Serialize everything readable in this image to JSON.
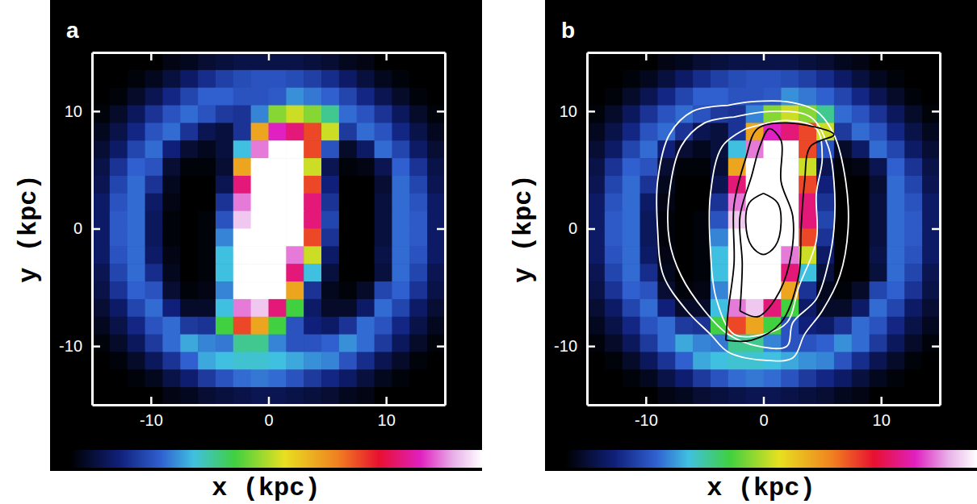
{
  "chart_data": [
    {
      "type": "heatmap",
      "label": "a",
      "x_label": "x (kpc)",
      "y_label": "y (kpc)",
      "xlim": [
        -15,
        15
      ],
      "ylim": [
        -15,
        15
      ],
      "xticks": [
        -10,
        0,
        10
      ],
      "yticks": [
        -10,
        0,
        10
      ],
      "colorbar_range": [
        0,
        10
      ],
      "x": [
        -14.25,
        -12.75,
        -11.25,
        -9.75,
        -8.25,
        -6.75,
        -5.25,
        -3.75,
        -2.25,
        -0.75,
        0.75,
        2.25,
        3.75,
        5.25,
        6.75,
        8.25,
        9.75,
        11.25,
        12.75,
        14.25
      ],
      "y": [
        14.25,
        12.75,
        11.25,
        9.75,
        8.25,
        6.75,
        5.25,
        3.75,
        2.25,
        0.75,
        -0.75,
        -2.25,
        -3.75,
        -5.25,
        -6.75,
        -8.25,
        -9.75,
        -11.25,
        -12.75,
        -14.25
      ],
      "cells": [
        [
          0,
          0,
          0,
          0,
          0.2,
          0.3,
          0.5,
          0.6,
          0.7,
          0.7,
          0.7,
          0.7,
          0.6,
          0.5,
          0.3,
          0.2,
          0,
          0,
          0,
          0
        ],
        [
          0,
          0,
          0.1,
          0.3,
          0.6,
          1.0,
          1.4,
          1.7,
          1.9,
          2,
          2,
          1.9,
          1.7,
          1.4,
          1.0,
          0.6,
          0.3,
          0.1,
          0,
          0
        ],
        [
          0,
          0.1,
          0.4,
          0.8,
          1.3,
          1.8,
          2.2,
          2.2,
          2.0,
          2.0,
          2.1,
          2.6,
          2.4,
          2.2,
          1.8,
          1.3,
          0.8,
          0.4,
          0.1,
          0
        ],
        [
          0.1,
          0.4,
          0.9,
          1.5,
          2.0,
          2.3,
          2.0,
          1.6,
          1.5,
          2.5,
          4.5,
          5,
          4.5,
          3.5,
          2.3,
          2.0,
          1.5,
          0.9,
          0.4,
          0.1
        ],
        [
          0.3,
          0.7,
          1.3,
          2.0,
          2.3,
          1.5,
          0.8,
          0.6,
          1.5,
          6,
          8.5,
          8,
          7,
          5,
          1.6,
          2.3,
          2.0,
          1.3,
          0.7,
          0.3
        ],
        [
          0.5,
          1.0,
          1.8,
          2.3,
          1.2,
          0.5,
          0.3,
          0.6,
          3,
          9,
          10,
          10,
          7,
          2,
          0.4,
          1.0,
          2.3,
          1.8,
          1.0,
          0.5
        ],
        [
          0.7,
          1.5,
          2.2,
          2.0,
          0.5,
          0.1,
          0.1,
          0.5,
          6,
          10,
          10,
          10,
          5,
          0.8,
          0.1,
          0.2,
          0.8,
          2.2,
          1.5,
          0.7
        ],
        [
          0.8,
          1.8,
          2.3,
          1.5,
          0.3,
          0,
          0,
          0.8,
          8,
          10,
          10,
          10,
          7,
          1.2,
          0,
          0,
          0.5,
          2.3,
          1.8,
          0.8
        ],
        [
          1.0,
          2.0,
          2.3,
          1.0,
          0.2,
          0,
          0,
          1.5,
          9,
          10,
          10,
          10,
          8,
          1.5,
          0,
          0,
          0.6,
          2.3,
          2.0,
          1.0
        ],
        [
          1.0,
          2.1,
          2.3,
          0.9,
          0.1,
          0,
          0.1,
          2,
          9.5,
          10,
          10,
          10,
          8,
          1.8,
          0,
          0,
          0.6,
          2.3,
          2.1,
          1.0
        ],
        [
          1.0,
          2.1,
          2.3,
          0.9,
          0.1,
          0,
          0.1,
          2.5,
          10,
          10,
          10,
          10,
          7,
          1.5,
          0,
          0,
          0.6,
          2.3,
          2.1,
          1.0
        ],
        [
          1.0,
          2.0,
          2.3,
          1.0,
          0.2,
          0,
          0.1,
          3,
          10,
          10,
          10,
          9,
          5,
          1,
          0,
          0,
          0.7,
          2.3,
          2.0,
          1.0
        ],
        [
          0.8,
          1.8,
          2.3,
          1.4,
          0.3,
          0,
          0.1,
          3,
          10,
          10,
          10,
          8,
          3,
          0.6,
          0,
          0,
          0.6,
          2.3,
          1.8,
          0.8
        ],
        [
          0.7,
          1.5,
          2.2,
          2.0,
          0.5,
          0.1,
          0.2,
          2.5,
          10,
          10,
          10,
          6,
          1.5,
          0.3,
          0.1,
          0.4,
          1.8,
          2.2,
          1.5,
          0.7
        ],
        [
          0.5,
          1.0,
          1.8,
          2.3,
          1.2,
          0.4,
          0.4,
          3,
          9,
          9.5,
          8,
          4,
          1,
          0.4,
          0.4,
          1.0,
          2.3,
          1.8,
          1.0,
          0.5
        ],
        [
          0.3,
          0.7,
          1.3,
          2.0,
          2.3,
          1.6,
          1.5,
          4,
          7,
          6,
          4,
          2,
          1.2,
          1.0,
          1.5,
          2.3,
          2.0,
          1.3,
          0.7,
          0.3
        ],
        [
          0.1,
          0.4,
          0.9,
          1.6,
          2.3,
          2.8,
          2.5,
          2.4,
          3.5,
          3.5,
          2.5,
          2.0,
          2.0,
          2.2,
          2.6,
          2.3,
          1.6,
          0.9,
          0.4,
          0.1
        ],
        [
          0,
          0.1,
          0.4,
          0.9,
          1.5,
          2.2,
          2.8,
          3.0,
          3.1,
          3.1,
          3.0,
          2.8,
          2.6,
          2.5,
          2.0,
          1.4,
          0.8,
          0.4,
          0.1,
          0
        ],
        [
          0,
          0,
          0.1,
          0.3,
          0.7,
          1.1,
          1.6,
          2.0,
          2.3,
          2.4,
          2.3,
          2.0,
          1.6,
          1.3,
          1.0,
          0.6,
          0.3,
          0.1,
          0,
          0
        ],
        [
          0,
          0,
          0,
          0,
          0.2,
          0.3,
          0.5,
          0.6,
          0.7,
          0.8,
          0.8,
          0.7,
          0.6,
          0.5,
          0.3,
          0.2,
          0,
          0,
          0,
          0
        ]
      ]
    },
    {
      "type": "heatmap",
      "label": "b",
      "x_label": "x (kpc)",
      "y_label": "y (kpc)",
      "xlim": [
        -15,
        15
      ],
      "ylim": [
        -15,
        15
      ],
      "xticks": [
        -10,
        0,
        10
      ],
      "yticks": [
        -10,
        0,
        10
      ],
      "colorbar_range": [
        0,
        10
      ],
      "x": [
        -14.25,
        -12.75,
        -11.25,
        -9.75,
        -8.25,
        -6.75,
        -5.25,
        -3.75,
        -2.25,
        -0.75,
        0.75,
        2.25,
        3.75,
        5.25,
        6.75,
        8.25,
        9.75,
        11.25,
        12.75,
        14.25
      ],
      "y": [
        14.25,
        12.75,
        11.25,
        9.75,
        8.25,
        6.75,
        5.25,
        3.75,
        2.25,
        0.75,
        -0.75,
        -2.25,
        -3.75,
        -5.25,
        -6.75,
        -8.25,
        -9.75,
        -11.25,
        -12.75,
        -14.25
      ],
      "cells": [
        [
          0,
          0,
          0,
          0,
          0.2,
          0.3,
          0.5,
          0.6,
          0.7,
          0.7,
          0.7,
          0.7,
          0.6,
          0.5,
          0.3,
          0.2,
          0,
          0,
          0,
          0
        ],
        [
          0,
          0,
          0.1,
          0.3,
          0.6,
          1.0,
          1.4,
          1.7,
          1.9,
          2,
          2,
          1.9,
          1.7,
          1.4,
          1.0,
          0.6,
          0.3,
          0.1,
          0,
          0
        ],
        [
          0,
          0.1,
          0.4,
          0.8,
          1.3,
          1.8,
          2.2,
          2.2,
          2.0,
          2.0,
          2.1,
          2.6,
          2.4,
          2.2,
          1.8,
          1.3,
          0.8,
          0.4,
          0.1,
          0
        ],
        [
          0.1,
          0.4,
          0.9,
          1.5,
          2.0,
          2.3,
          2.0,
          1.6,
          1.5,
          2.5,
          4.5,
          5,
          4.5,
          3.5,
          2.3,
          2.0,
          1.5,
          0.9,
          0.4,
          0.1
        ],
        [
          0.3,
          0.7,
          1.3,
          2.0,
          2.3,
          1.5,
          0.8,
          0.6,
          1.5,
          6,
          8.5,
          8,
          7,
          5,
          1.6,
          2.3,
          2.0,
          1.3,
          0.7,
          0.3
        ],
        [
          0.5,
          1.0,
          1.8,
          2.3,
          1.2,
          0.5,
          0.3,
          0.6,
          3,
          9,
          10,
          10,
          7,
          2,
          0.4,
          1.0,
          2.3,
          1.8,
          1.0,
          0.5
        ],
        [
          0.7,
          1.5,
          2.2,
          2.0,
          0.5,
          0.1,
          0.1,
          0.5,
          6,
          10,
          10,
          10,
          5,
          0.8,
          0.1,
          0.2,
          0.8,
          2.2,
          1.5,
          0.7
        ],
        [
          0.8,
          1.8,
          2.3,
          1.5,
          0.3,
          0,
          0,
          0.8,
          8,
          10,
          10,
          10,
          7,
          1.2,
          0,
          0,
          0.5,
          2.3,
          1.8,
          0.8
        ],
        [
          1.0,
          2.0,
          2.3,
          1.0,
          0.2,
          0,
          0,
          1.5,
          9,
          10,
          10,
          10,
          8,
          1.5,
          0,
          0,
          0.6,
          2.3,
          2.0,
          1.0
        ],
        [
          1.0,
          2.1,
          2.3,
          0.9,
          0.1,
          0,
          0.1,
          2,
          9.5,
          10,
          10,
          10,
          8,
          1.8,
          0,
          0,
          0.6,
          2.3,
          2.1,
          1.0
        ],
        [
          1.0,
          2.1,
          2.3,
          0.9,
          0.1,
          0,
          0.1,
          2.5,
          10,
          10,
          10,
          10,
          7,
          1.5,
          0,
          0,
          0.6,
          2.3,
          2.1,
          1.0
        ],
        [
          1.0,
          2.0,
          2.3,
          1.0,
          0.2,
          0,
          0.1,
          3,
          10,
          10,
          10,
          9,
          5,
          1,
          0,
          0,
          0.7,
          2.3,
          2.0,
          1.0
        ],
        [
          0.8,
          1.8,
          2.3,
          1.4,
          0.3,
          0,
          0.1,
          3,
          10,
          10,
          10,
          8,
          3,
          0.6,
          0,
          0,
          0.6,
          2.3,
          1.8,
          0.8
        ],
        [
          0.7,
          1.5,
          2.2,
          2.0,
          0.5,
          0.1,
          0.2,
          2.5,
          10,
          10,
          10,
          6,
          1.5,
          0.3,
          0.1,
          0.4,
          1.8,
          2.2,
          1.5,
          0.7
        ],
        [
          0.5,
          1.0,
          1.8,
          2.3,
          1.2,
          0.4,
          0.4,
          3,
          9,
          9.5,
          8,
          4,
          1,
          0.4,
          0.4,
          1.0,
          2.3,
          1.8,
          1.0,
          0.5
        ],
        [
          0.3,
          0.7,
          1.3,
          2.0,
          2.3,
          1.6,
          1.5,
          4,
          7,
          6,
          4,
          2,
          1.2,
          1.0,
          1.5,
          2.3,
          2.0,
          1.3,
          0.7,
          0.3
        ],
        [
          0.1,
          0.4,
          0.9,
          1.6,
          2.3,
          2.8,
          2.5,
          2.4,
          3.5,
          3.5,
          2.5,
          2.0,
          2.0,
          2.2,
          2.6,
          2.3,
          1.6,
          0.9,
          0.4,
          0.1
        ],
        [
          0,
          0.1,
          0.4,
          0.9,
          1.5,
          2.2,
          2.8,
          3.0,
          3.1,
          3.1,
          3.0,
          2.8,
          2.6,
          2.5,
          2.0,
          1.4,
          0.8,
          0.4,
          0.1,
          0
        ],
        [
          0,
          0,
          0.1,
          0.3,
          0.7,
          1.1,
          1.6,
          2.0,
          2.3,
          2.4,
          2.3,
          2.0,
          1.6,
          1.3,
          1.0,
          0.6,
          0.3,
          0.1,
          0,
          0
        ],
        [
          0,
          0,
          0,
          0,
          0.2,
          0.3,
          0.5,
          0.6,
          0.7,
          0.8,
          0.8,
          0.7,
          0.6,
          0.5,
          0.3,
          0.2,
          0,
          0,
          0,
          0
        ]
      ],
      "contours": [
        {
          "color": "white",
          "x": [
            -3,
            -6,
            -8,
            -9,
            -9,
            -8.5,
            -6.5,
            -4.5,
            -3,
            0,
            2.5,
            3.5,
            5,
            6.5,
            7.2,
            7,
            6,
            4.5,
            2,
            -1,
            -3
          ],
          "y": [
            10.5,
            10,
            8,
            4,
            0,
            -4,
            -7,
            -9,
            -10.5,
            -11.2,
            -11,
            -9,
            -7,
            -4,
            0,
            4,
            8,
            10,
            10.8,
            10.8,
            10.5
          ]
        },
        {
          "color": "white",
          "x": [
            -2.5,
            -5,
            -7,
            -8,
            -8,
            -7,
            -5,
            -3,
            -0.5,
            2,
            2.5,
            4.5,
            5.5,
            6,
            6,
            5.5,
            4,
            1,
            -2.5
          ],
          "y": [
            9.5,
            9,
            7,
            3,
            -1,
            -4,
            -7,
            -9,
            -10,
            -10,
            -8,
            -6,
            -3,
            0,
            4,
            7,
            9.5,
            10,
            9.5
          ]
        },
        {
          "color": "white",
          "x": [
            -1.5,
            -3.5,
            -4.5,
            -4.5,
            -4,
            -2.5,
            0,
            2,
            3,
            4.5,
            4.5,
            5,
            4.5,
            2,
            -1.5
          ],
          "y": [
            8.5,
            7,
            3,
            -2,
            -6,
            -9,
            -9,
            -8,
            -5,
            -1,
            3,
            6,
            8.5,
            9.2,
            8.5
          ]
        },
        {
          "color": "black",
          "x": [
            -3.2,
            -3,
            -2.5,
            -2.5,
            -1.5,
            -0.5,
            2,
            6,
            4,
            3.5,
            3.2,
            3,
            1.5,
            -1,
            -3.2
          ],
          "y": [
            -9.5,
            -7,
            -3,
            2,
            6,
            8.5,
            9,
            8,
            7,
            4,
            0,
            -4,
            -8,
            -9.5,
            -9.5
          ]
        },
        {
          "color": "black",
          "x": [
            -2,
            -1.8,
            -2,
            -1,
            -0.3,
            0.5,
            1.5,
            1.5,
            2.5,
            2.2,
            1,
            -0.5,
            -2
          ],
          "y": [
            -7,
            -3,
            1,
            4.5,
            7,
            8.5,
            7.5,
            4,
            1,
            -3,
            -6,
            -7.5,
            -7
          ]
        },
        {
          "color": "black",
          "x": [
            0,
            -1.2,
            -1.5,
            -1,
            0,
            1,
            1.5,
            1.2,
            0
          ],
          "y": [
            3,
            2.2,
            0.5,
            -1.5,
            -2.2,
            -1.5,
            0.5,
            2.2,
            3
          ]
        }
      ]
    }
  ]
}
